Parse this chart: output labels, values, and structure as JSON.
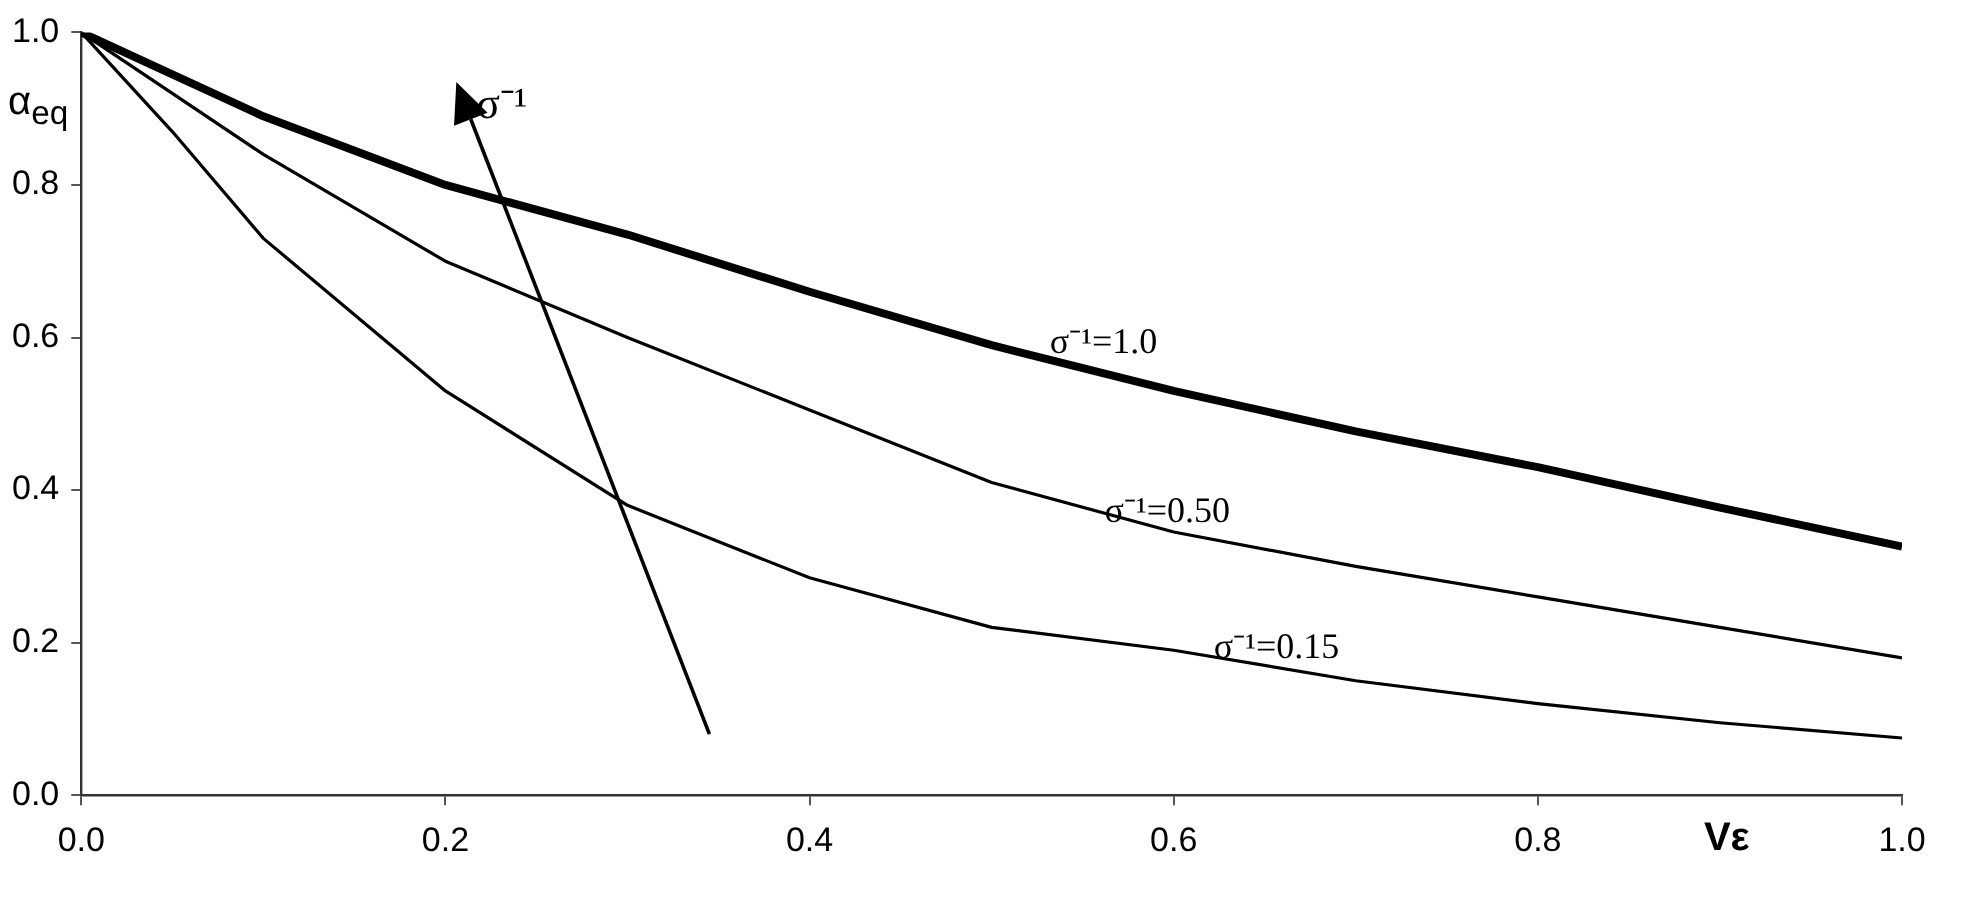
{
  "chart_data": {
    "type": "line",
    "xlabel": "Vε",
    "ylabel": "α$_{eq}$",
    "x": [
      0,
      0.05,
      0.1,
      0.2,
      0.3,
      0.4,
      0.5,
      0.6,
      0.7,
      0.8,
      0.9,
      1.0
    ],
    "series": [
      {
        "name": "σ⁻¹=1.0",
        "color": "#000000",
        "values": [
          1.0,
          0.945,
          0.89,
          0.8,
          0.735,
          0.66,
          0.59,
          0.53,
          0.477,
          0.43,
          0.377,
          0.326
        ]
      },
      {
        "name": "σ⁻¹=0.50",
        "color": "#000000",
        "values": [
          1.0,
          0.92,
          0.84,
          0.7,
          0.6,
          0.505,
          0.41,
          0.345,
          0.3,
          0.26,
          0.22,
          0.18
        ]
      },
      {
        "name": "σ⁻¹=0.15",
        "color": "#000000",
        "values": [
          1.0,
          0.87,
          0.73,
          0.53,
          0.38,
          0.285,
          0.22,
          0.19,
          0.15,
          0.12,
          0.095,
          0.075
        ]
      }
    ],
    "xlim": [
      0,
      1.0
    ],
    "ylim": [
      0,
      1.0
    ],
    "xticks": [
      {
        "value": 0,
        "label": "0.0"
      },
      0.2,
      0.4,
      0.6,
      0.8,
      {
        "value": 1,
        "label": "1.0"
      }
    ],
    "yticks": [
      {
        "value": 0,
        "label": "0.0"
      },
      0.2,
      0.4,
      0.6,
      0.8,
      {
        "value": 1,
        "label": "1.0"
      }
    ],
    "annotations": [
      "σ⁻¹"
    ],
    "grid": false,
    "legend": false,
    "marker": "none",
    "line_style": "solid"
  }
}
